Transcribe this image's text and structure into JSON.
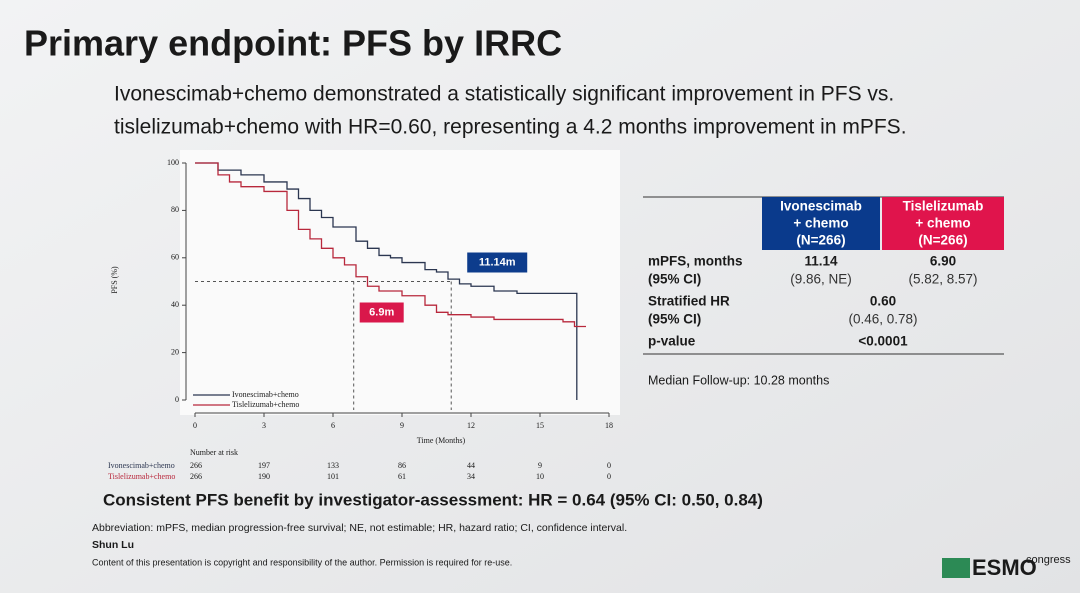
{
  "title": "Primary endpoint: PFS by IRRC",
  "subtitle": [
    "Ivonescimab+chemo demonstrated a statistically significant improvement in PFS vs.",
    "tislelizumab+chemo with HR=0.60, representing a 4.2 months improvement in mPFS."
  ],
  "chart_data": {
    "type": "line",
    "step": "post",
    "xlabel": "Time (Months)",
    "ylabel": "PFS (%)",
    "xlim": [
      0,
      18
    ],
    "xticks": [
      0,
      3,
      6,
      9,
      12,
      15,
      18
    ],
    "ylim": [
      0,
      100
    ],
    "yticks": [
      0,
      20,
      40,
      60,
      80,
      100
    ],
    "legend": "lower left",
    "series": [
      {
        "name": "Ivonescimab+chemo",
        "color": "#2b3650",
        "x": [
          0,
          1,
          2,
          3,
          4,
          4.5,
          5,
          5.5,
          6,
          7,
          7.5,
          8,
          8.5,
          9,
          10,
          10.5,
          11,
          11.5,
          12,
          13,
          14,
          16,
          16.6,
          16.6
        ],
        "values": [
          100,
          97,
          95,
          92,
          89,
          85,
          80,
          77,
          73,
          67,
          64,
          61,
          60,
          58,
          55,
          54,
          51,
          49,
          48,
          46,
          45,
          45,
          41,
          0
        ]
      },
      {
        "name": "Tislelizumab+chemo",
        "color": "#b8283c",
        "x": [
          0,
          1,
          1.5,
          2,
          3,
          4,
          4.5,
          5,
          5.5,
          6,
          6.5,
          7,
          7.5,
          8,
          9,
          10,
          10.5,
          11,
          12,
          13,
          15,
          16,
          16.5,
          17
        ],
        "values": [
          100,
          95,
          92,
          90,
          88,
          80,
          72,
          68,
          64,
          60,
          57,
          52,
          48,
          46,
          44,
          40,
          37,
          36,
          35,
          34,
          34,
          33,
          31,
          31
        ]
      }
    ],
    "median_level": 50,
    "medians": [
      {
        "value": 11.14,
        "label": "11.14m",
        "color": "#0d3c8c"
      },
      {
        "value": 6.9,
        "label": "6.9m",
        "color": "#d9184b"
      }
    ],
    "risk_table": {
      "title": "Number at risk",
      "rows": [
        {
          "name": "Ivonescimab+chemo",
          "values": [
            266,
            197,
            133,
            86,
            44,
            9,
            0
          ]
        },
        {
          "name": "Tislelizumab+chemo",
          "values": [
            266,
            190,
            101,
            61,
            34,
            10,
            0
          ]
        }
      ]
    }
  },
  "table": {
    "header": [
      [
        "Ivonescimab",
        "+ chemo",
        "(N=266)"
      ],
      [
        "Tislelizumab",
        "+ chemo",
        "(N=266)"
      ]
    ],
    "rows": [
      {
        "label": [
          "mPFS, months",
          "(95% CI)"
        ],
        "cells": [
          [
            "11.14",
            "(9.86, NE)"
          ],
          [
            "6.90",
            "(5.82, 8.57)"
          ]
        ]
      },
      {
        "label": [
          "Stratified HR",
          "(95% CI)"
        ],
        "cells": [
          [
            "0.60",
            "(0.46, 0.78)"
          ]
        ]
      },
      {
        "label": [
          "p-value"
        ],
        "cells": [
          [
            "<0.0001"
          ]
        ]
      }
    ]
  },
  "followup": "Median Follow-up: 10.28 months",
  "consistent": "Consistent PFS benefit by investigator-assessment: HR = 0.64 (95% CI: 0.50, 0.84)",
  "abbreviation": "Abbreviation: mPFS, median progression-free survival; NE, not estimable; HR, hazard ratio; CI, confidence interval.",
  "author": "Shun Lu",
  "copyright": "Content of this presentation is copyright and responsibility of the author. Permission is required for re-use.",
  "logo": {
    "name": "ESMO",
    "suffix": "congress"
  }
}
